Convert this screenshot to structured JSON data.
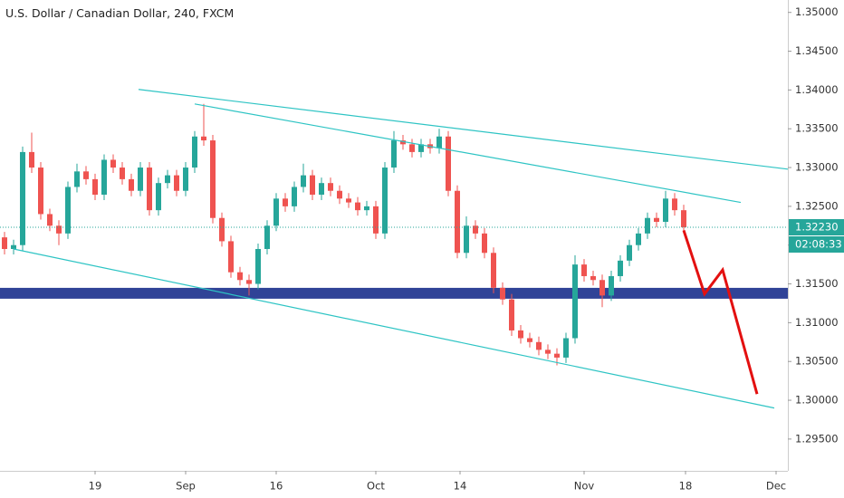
{
  "chart_data": {
    "type": "candlestick",
    "title": "U.S. Dollar / Canadian Dollar, 240, FXCM",
    "x": [
      -5,
      -4.5,
      -4,
      -3.5,
      -3,
      -2.5,
      -2,
      -1.5,
      -1,
      -0.5,
      0,
      0.5,
      1,
      1.5,
      2,
      2.5,
      3,
      3.5,
      4,
      4.5,
      5,
      5.5,
      6,
      6.5,
      7,
      7.5,
      8,
      8.5,
      9,
      9.5,
      10,
      10.5,
      11,
      11.5,
      12,
      12.5,
      13,
      13.5,
      14,
      14.5,
      15,
      15.5,
      16,
      16.5,
      17,
      17.5,
      18,
      18.5,
      19,
      19.5,
      20,
      20.5,
      21,
      21.5,
      22,
      22.5,
      23,
      23.5,
      24,
      24.5,
      25,
      25.5,
      26,
      26.5,
      27,
      27.5,
      28,
      28.5,
      29,
      29.5,
      30,
      30.5,
      31,
      31.5,
      32,
      32.5
    ],
    "ohlc": [
      [
        1.321,
        1.3217,
        1.3188,
        1.3195
      ],
      [
        1.3195,
        1.3207,
        1.3188,
        1.32
      ],
      [
        1.32,
        1.3327,
        1.3193,
        1.332
      ],
      [
        1.332,
        1.3345,
        1.3293,
        1.33
      ],
      [
        1.33,
        1.3307,
        1.3233,
        1.324
      ],
      [
        1.324,
        1.3247,
        1.3218,
        1.3225
      ],
      [
        1.3225,
        1.3232,
        1.32,
        1.3215
      ],
      [
        1.3215,
        1.3282,
        1.3208,
        1.3275
      ],
      [
        1.3275,
        1.3305,
        1.3268,
        1.3295
      ],
      [
        1.3295,
        1.3302,
        1.3278,
        1.3285
      ],
      [
        1.3285,
        1.3292,
        1.3258,
        1.3265
      ],
      [
        1.3265,
        1.3317,
        1.3258,
        1.331
      ],
      [
        1.331,
        1.3317,
        1.3293,
        1.33
      ],
      [
        1.33,
        1.3307,
        1.3278,
        1.3285
      ],
      [
        1.3285,
        1.3292,
        1.3263,
        1.327
      ],
      [
        1.327,
        1.3307,
        1.3263,
        1.33
      ],
      [
        1.33,
        1.3307,
        1.3238,
        1.3245
      ],
      [
        1.3245,
        1.3287,
        1.3238,
        1.328
      ],
      [
        1.328,
        1.3297,
        1.3273,
        1.329
      ],
      [
        1.329,
        1.3297,
        1.3263,
        1.327
      ],
      [
        1.327,
        1.3307,
        1.3263,
        1.33
      ],
      [
        1.33,
        1.3347,
        1.3293,
        1.334
      ],
      [
        1.334,
        1.3382,
        1.3328,
        1.3335
      ],
      [
        1.3335,
        1.3342,
        1.3228,
        1.3235
      ],
      [
        1.3235,
        1.3242,
        1.3198,
        1.3205
      ],
      [
        1.3205,
        1.3212,
        1.3158,
        1.3165
      ],
      [
        1.3165,
        1.3172,
        1.3148,
        1.3155
      ],
      [
        1.3155,
        1.3162,
        1.3135,
        1.315
      ],
      [
        1.315,
        1.3202,
        1.3143,
        1.3195
      ],
      [
        1.3195,
        1.3232,
        1.3188,
        1.3225
      ],
      [
        1.3225,
        1.3267,
        1.3218,
        1.326
      ],
      [
        1.326,
        1.3267,
        1.3243,
        1.325
      ],
      [
        1.325,
        1.3282,
        1.3243,
        1.3275
      ],
      [
        1.3275,
        1.3305,
        1.3268,
        1.329
      ],
      [
        1.329,
        1.3297,
        1.3258,
        1.3265
      ],
      [
        1.3265,
        1.3287,
        1.3258,
        1.328
      ],
      [
        1.328,
        1.3287,
        1.3263,
        1.327
      ],
      [
        1.327,
        1.3277,
        1.3253,
        1.326
      ],
      [
        1.326,
        1.3267,
        1.3248,
        1.3255
      ],
      [
        1.3255,
        1.3262,
        1.3238,
        1.3245
      ],
      [
        1.3245,
        1.3257,
        1.3238,
        1.325
      ],
      [
        1.325,
        1.3257,
        1.3208,
        1.3215
      ],
      [
        1.3215,
        1.3307,
        1.3208,
        1.33
      ],
      [
        1.33,
        1.3347,
        1.3293,
        1.3335
      ],
      [
        1.3335,
        1.3342,
        1.3323,
        1.333
      ],
      [
        1.333,
        1.3337,
        1.3313,
        1.332
      ],
      [
        1.332,
        1.3337,
        1.3313,
        1.333
      ],
      [
        1.333,
        1.3337,
        1.3318,
        1.3325
      ],
      [
        1.3325,
        1.335,
        1.3318,
        1.334
      ],
      [
        1.334,
        1.3347,
        1.3263,
        1.327
      ],
      [
        1.327,
        1.3277,
        1.3183,
        1.319
      ],
      [
        1.319,
        1.3237,
        1.3183,
        1.3225
      ],
      [
        1.3225,
        1.3232,
        1.3208,
        1.3215
      ],
      [
        1.3215,
        1.3222,
        1.3183,
        1.319
      ],
      [
        1.319,
        1.3197,
        1.3138,
        1.3145
      ],
      [
        1.3145,
        1.3152,
        1.3123,
        1.313
      ],
      [
        1.313,
        1.3137,
        1.3083,
        1.309
      ],
      [
        1.309,
        1.3097,
        1.3073,
        1.308
      ],
      [
        1.308,
        1.3087,
        1.3068,
        1.3075
      ],
      [
        1.3075,
        1.3082,
        1.3058,
        1.3065
      ],
      [
        1.3065,
        1.3072,
        1.3053,
        1.306
      ],
      [
        1.306,
        1.3067,
        1.3045,
        1.3055
      ],
      [
        1.3055,
        1.3087,
        1.3048,
        1.308
      ],
      [
        1.308,
        1.3187,
        1.3073,
        1.3175
      ],
      [
        1.3175,
        1.3182,
        1.3153,
        1.316
      ],
      [
        1.316,
        1.3167,
        1.3148,
        1.3155
      ],
      [
        1.3155,
        1.3162,
        1.312,
        1.3135
      ],
      [
        1.3135,
        1.3167,
        1.3128,
        1.316
      ],
      [
        1.316,
        1.3187,
        1.3153,
        1.318
      ],
      [
        1.318,
        1.3207,
        1.3173,
        1.32
      ],
      [
        1.32,
        1.3222,
        1.3193,
        1.3215
      ],
      [
        1.3215,
        1.3242,
        1.3208,
        1.3235
      ],
      [
        1.3235,
        1.3242,
        1.3223,
        1.323
      ],
      [
        1.323,
        1.327,
        1.3223,
        1.326
      ],
      [
        1.326,
        1.3267,
        1.3238,
        1.3245
      ],
      [
        1.3245,
        1.3252,
        1.3216,
        1.3223
      ]
    ],
    "up_color": "#26a69a",
    "down_color": "#ef5350",
    "xlim": [
      -5.25,
      38.25
    ],
    "xticks": [
      {
        "value": 0,
        "label": "19"
      },
      {
        "value": 5,
        "label": "Sep"
      },
      {
        "value": 10,
        "label": "16"
      },
      {
        "value": 15.5,
        "label": "Oct"
      },
      {
        "value": 20.15,
        "label": "14"
      },
      {
        "value": 27,
        "label": "Nov"
      },
      {
        "value": 32.6,
        "label": "18"
      },
      {
        "value": 37.6,
        "label": "Dec"
      }
    ],
    "ylim": [
      1.2909,
      1.3516
    ],
    "yticks": [
      {
        "value": 1.295,
        "label": "1.29500"
      },
      {
        "value": 1.3,
        "label": "1.30000"
      },
      {
        "value": 1.305,
        "label": "1.30500"
      },
      {
        "value": 1.31,
        "label": "1.31000"
      },
      {
        "value": 1.315,
        "label": "1.31500"
      },
      {
        "value": 1.32,
        "label": "1.32000"
      },
      {
        "value": 1.325,
        "label": "1.32500"
      },
      {
        "value": 1.33,
        "label": "1.33000"
      },
      {
        "value": 1.335,
        "label": "1.33500"
      },
      {
        "value": 1.34,
        "label": "1.34000"
      },
      {
        "value": 1.345,
        "label": "1.34500"
      },
      {
        "value": 1.35,
        "label": "1.35000"
      }
    ],
    "last_price": {
      "value": 1.3223,
      "label": "1.32230"
    },
    "countdown": "02:08:33",
    "trend_lines": [
      {
        "x": [
          2.4,
          38.25
        ],
        "y": [
          1.34007,
          1.32979
        ],
        "color": "#2ec4c4"
      },
      {
        "x": [
          5.5,
          35.65
        ],
        "y": [
          1.3382,
          1.3255
        ],
        "color": "#2ec4c4"
      },
      {
        "x": [
          -4.5,
          37.5
        ],
        "y": [
          1.3195,
          1.299
        ],
        "color": "#2ec4c4"
      }
    ],
    "zone": {
      "y": [
        1.31309,
        1.31449
      ],
      "color": "#1a2f8c"
    },
    "projection": {
      "x": [
        32.5,
        33.65,
        34.65,
        36.55
      ],
      "y": [
        1.3219,
        1.3137,
        1.3168,
        1.3008
      ],
      "color": "#e31010"
    }
  }
}
